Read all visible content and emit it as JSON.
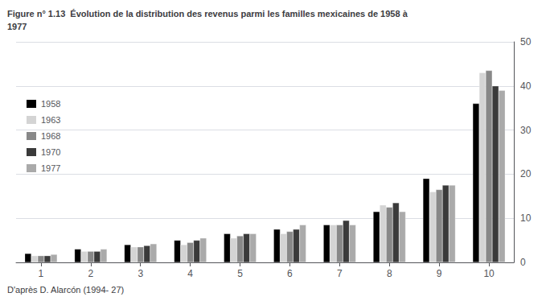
{
  "chart_data": {
    "type": "bar",
    "title": "Figure n° 1.13  Évolution de la distribution des revenus parmi les familles mexicaines de 1958 à\n1977",
    "annotations": [
      "D'après D. Alarcón (1994- 27)"
    ],
    "categories": [
      "1",
      "2",
      "3",
      "4",
      "5",
      "6",
      "7",
      "8",
      "9",
      "10"
    ],
    "series": [
      {
        "name": "1958",
        "color": "#000000",
        "values": [
          2.0,
          3.0,
          4.0,
          5.0,
          6.5,
          7.5,
          8.5,
          11.5,
          19.0,
          36.0
        ]
      },
      {
        "name": "1963",
        "color": "#d4d4d4",
        "values": [
          1.5,
          2.5,
          3.5,
          4.0,
          5.5,
          6.5,
          8.5,
          13.0,
          16.0,
          43.0
        ]
      },
      {
        "name": "1968",
        "color": "#888888",
        "values": [
          1.5,
          2.5,
          3.5,
          4.5,
          6.0,
          7.0,
          8.5,
          12.5,
          16.5,
          43.5
        ]
      },
      {
        "name": "1970",
        "color": "#3a3a3a",
        "values": [
          1.5,
          2.5,
          3.8,
          5.0,
          6.5,
          7.5,
          9.5,
          13.5,
          17.5,
          40.0
        ]
      },
      {
        "name": "1977",
        "color": "#aaaaaa",
        "values": [
          1.8,
          3.0,
          4.2,
          5.5,
          6.5,
          8.5,
          8.5,
          11.5,
          17.5,
          39.0
        ]
      }
    ],
    "ylim": [
      0,
      50
    ],
    "yticks": [
      0,
      10,
      20,
      30,
      40,
      50
    ],
    "grid": true,
    "legend": "upper left"
  }
}
